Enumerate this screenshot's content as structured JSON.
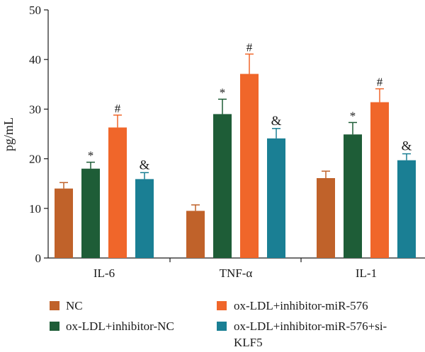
{
  "chart_data": {
    "type": "bar",
    "title": "",
    "xlabel": "",
    "ylabel": "pg/mL",
    "ylim": [
      0,
      50
    ],
    "yticks": [
      0,
      10,
      20,
      30,
      40,
      50
    ],
    "grid": false,
    "legend_position": "bottom",
    "categories": [
      "IL-6",
      "TNF-α",
      "IL-1"
    ],
    "series": [
      {
        "name": "NC",
        "color": "#c0622a",
        "values": [
          14.0,
          9.5,
          16.1
        ],
        "errors": [
          1.2,
          1.2,
          1.4
        ],
        "markers": [
          "",
          "",
          ""
        ]
      },
      {
        "name": "ox-LDL+inhibitor-NC",
        "color": "#1e5d37",
        "values": [
          18.0,
          29.0,
          24.9
        ],
        "errors": [
          1.3,
          3.0,
          2.4
        ],
        "markers": [
          "*",
          "*",
          "*"
        ]
      },
      {
        "name": "ox-LDL+inhibitor-miR-576",
        "color": "#f0662a",
        "values": [
          26.3,
          37.1,
          31.4
        ],
        "errors": [
          2.5,
          4.0,
          2.7
        ],
        "markers": [
          "#",
          "#",
          "#"
        ]
      },
      {
        "name": "ox-LDL+inhibitor-miR-576+si-KLF5",
        "color": "#1a7f94",
        "values": [
          15.9,
          24.1,
          19.7
        ],
        "errors": [
          1.3,
          2.0,
          1.3
        ],
        "markers": [
          "&",
          "&",
          "&"
        ]
      }
    ]
  },
  "legend": {
    "nc": "NC",
    "ox_ldl_inhibitor_nc": "ox-LDL+inhibitor-NC",
    "ox_ldl_inhibitor_mir576": "ox-LDL+inhibitor-miR-576",
    "ox_ldl_inhibitor_mir576_si_line1": "ox-LDL+inhibitor-miR-576+si-",
    "ox_ldl_inhibitor_mir576_si_line2": "KLF5"
  }
}
